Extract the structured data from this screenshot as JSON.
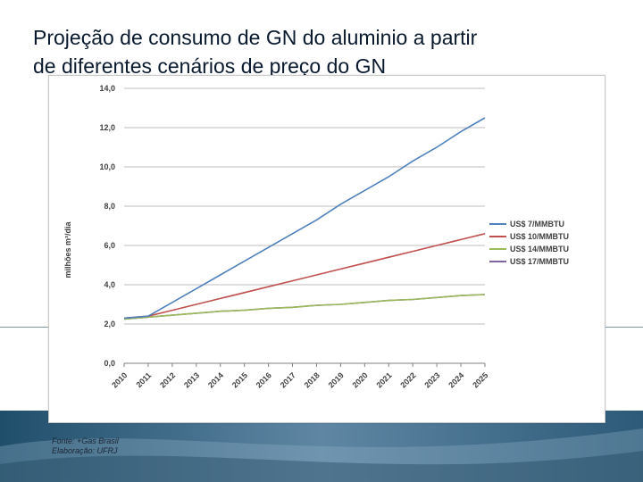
{
  "slide": {
    "title_line1": "Projeção de consumo de GN do aluminio a partir",
    "title_line2": "de diferentes cenários de preço do GN",
    "source": "Fonte: +Gas Brasil",
    "credit": "Elaboração: UFRJ"
  },
  "colors": {
    "series": [
      "#4f81bd",
      "#c0504d",
      "#9bbb59",
      "#8064a2"
    ],
    "grid": "#bfbfbf",
    "axis_text": "#404040",
    "band_dark": "#1f4e6b",
    "band_light": "#8eaec5"
  },
  "chart_data": {
    "type": "line",
    "title": "",
    "xlabel": "",
    "ylabel": "milhões m³/dia",
    "x": [
      "2010",
      "2011",
      "2012",
      "2013",
      "2014",
      "2015",
      "2016",
      "2017",
      "2018",
      "2019",
      "2020",
      "2021",
      "2022",
      "2023",
      "2024",
      "2025"
    ],
    "ylim": [
      0,
      14
    ],
    "yticks": [
      "0,0",
      "2,0",
      "4,0",
      "6,0",
      "8,0",
      "10,0",
      "12,0",
      "14,0"
    ],
    "grid": true,
    "legend_position": "right",
    "series": [
      {
        "name": "US$ 7/MMBTU",
        "values": [
          2.3,
          2.4,
          3.1,
          3.8,
          4.5,
          5.2,
          5.9,
          6.6,
          7.3,
          8.1,
          8.8,
          9.5,
          10.3,
          11.0,
          11.8,
          12.5
        ]
      },
      {
        "name": "US$ 10/MMBTU",
        "values": [
          2.3,
          2.4,
          2.7,
          3.0,
          3.3,
          3.6,
          3.9,
          4.2,
          4.5,
          4.8,
          5.1,
          5.4,
          5.7,
          6.0,
          6.3,
          6.6
        ]
      },
      {
        "name": "US$ 14/MMBTU",
        "values": [
          2.25,
          2.35,
          2.45,
          2.55,
          2.65,
          2.7,
          2.8,
          2.85,
          2.95,
          3.0,
          3.1,
          3.2,
          3.25,
          3.35,
          3.45,
          3.5
        ]
      },
      {
        "name": "US$ 17/MMBTU",
        "values": [
          2.25,
          2.35,
          2.45,
          2.55,
          2.65,
          2.7,
          2.8,
          2.85,
          2.95,
          3.0,
          3.1,
          3.2,
          3.25,
          3.35,
          3.45,
          3.5
        ]
      }
    ]
  }
}
